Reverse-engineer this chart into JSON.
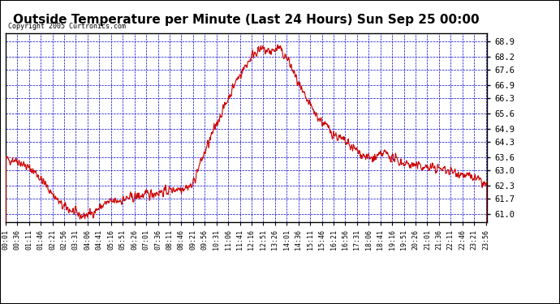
{
  "title": "Outside Temperature per Minute (Last 24 Hours) Sun Sep 25 00:00",
  "copyright": "Copyright 2005 Curtronics.com",
  "y_ticks": [
    61.0,
    61.7,
    62.3,
    63.0,
    63.6,
    64.3,
    64.9,
    65.6,
    66.3,
    66.9,
    67.6,
    68.2,
    68.9
  ],
  "ylim": [
    60.65,
    69.25
  ],
  "x_tick_labels": [
    "00:01",
    "00:36",
    "01:11",
    "01:46",
    "02:21",
    "02:56",
    "03:31",
    "04:06",
    "04:41",
    "05:16",
    "05:51",
    "06:26",
    "07:01",
    "07:36",
    "08:11",
    "08:46",
    "09:21",
    "09:56",
    "10:31",
    "11:06",
    "11:41",
    "12:16",
    "12:51",
    "13:26",
    "14:01",
    "14:36",
    "15:11",
    "15:46",
    "16:21",
    "16:56",
    "17:31",
    "18:06",
    "18:41",
    "19:16",
    "19:51",
    "20:26",
    "21:01",
    "21:36",
    "22:11",
    "22:46",
    "23:21",
    "23:56"
  ],
  "line_color": "#cc0000",
  "grid_color": "#0000cc",
  "background_color": "#ffffff",
  "plot_bg_color": "#ffffff",
  "title_fontsize": 11,
  "border_color": "#000000"
}
